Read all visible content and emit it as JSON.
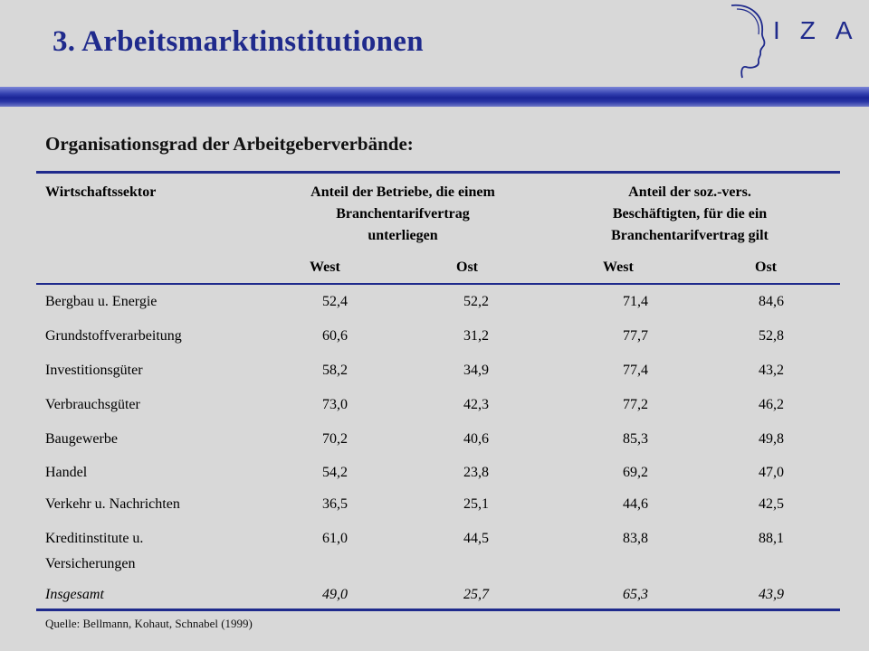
{
  "slide": {
    "title": "3. Arbeitsmarktinstitutionen",
    "logo_text": "IZA",
    "subtitle": "Organisationsgrad der Arbeitgeberverbände:",
    "source": "Quelle: Bellmann, Kohaut, Schnabel  (1999)",
    "colors": {
      "title": "#1f2a8c",
      "band": "#1a2496",
      "rules": "#1f2a8c",
      "background": "#d8d8d8"
    }
  },
  "table": {
    "header_sector": "Wirtschaftssektor",
    "group1_lines": [
      "Anteil der Betriebe, die einem",
      "Branchentarifvertrag",
      "unterliegen"
    ],
    "group2_lines": [
      "Anteil der soz.-vers.",
      "Beschäftigten, für die ein",
      "Branchentarifvertrag gilt"
    ],
    "sub_headers": [
      "West",
      "Ost",
      "West",
      "Ost"
    ],
    "rows": [
      {
        "sector": [
          "Bergbau u. Energie"
        ],
        "values": [
          "52,4",
          "52,2",
          "71,4",
          "84,6"
        ]
      },
      {
        "sector": [
          "Grundstoffverarbeitung"
        ],
        "values": [
          "60,6",
          "31,2",
          "77,7",
          "52,8"
        ]
      },
      {
        "sector": [
          "Investitionsgüter"
        ],
        "values": [
          "58,2",
          "34,9",
          "77,4",
          "43,2"
        ]
      },
      {
        "sector": [
          "Verbrauchsgüter"
        ],
        "values": [
          "73,0",
          "42,3",
          "77,2",
          "46,2"
        ]
      },
      {
        "sector": [
          "Baugewerbe"
        ],
        "values": [
          "70,2",
          "40,6",
          "85,3",
          "49,8"
        ]
      },
      {
        "sector": [
          "Handel"
        ],
        "values": [
          "54,2",
          "23,8",
          "69,2",
          "47,0"
        ]
      },
      {
        "sector": [
          "Verkehr u. Nachrichten"
        ],
        "values": [
          "36,5",
          "25,1",
          "44,6",
          "42,5"
        ]
      },
      {
        "sector": [
          "Kreditinstitute u.",
          "Versicherungen"
        ],
        "values": [
          "61,0",
          "44,5",
          "83,8",
          "88,1"
        ]
      }
    ],
    "total": {
      "sector": "Insgesamt",
      "values": [
        "49,0",
        "25,7",
        "65,3",
        "43,9"
      ]
    }
  }
}
